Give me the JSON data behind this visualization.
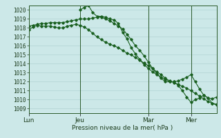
{
  "xlabel": "Pression niveau de la mer( hPa )",
  "background_color": "#cce8e8",
  "grid_color": "#aacece",
  "line_color": "#1a6020",
  "vline_color": "#2a5a2a",
  "ylim": [
    1008.5,
    1020.5
  ],
  "yticks": [
    1009,
    1010,
    1011,
    1012,
    1013,
    1014,
    1015,
    1016,
    1017,
    1018,
    1019,
    1020
  ],
  "xtick_labels": [
    "Lun",
    "Jeu",
    "Mar",
    "Mer"
  ],
  "xtick_positions": [
    0,
    36,
    84,
    114
  ],
  "xlim": [
    0,
    132
  ],
  "series1_x": [
    0,
    3,
    6,
    9,
    12,
    15,
    18,
    21,
    24,
    27,
    30,
    33,
    36,
    39,
    42,
    45,
    48,
    51,
    54,
    57,
    60,
    63,
    66,
    69,
    72,
    75,
    78,
    81,
    84,
    87,
    90,
    93,
    96,
    99,
    102,
    105,
    108,
    111,
    114,
    117,
    120,
    123,
    126,
    129,
    132
  ],
  "series1_y": [
    1017.8,
    1018.1,
    1018.3,
    1018.2,
    1018.2,
    1018.2,
    1018.1,
    1018.0,
    1018.0,
    1018.2,
    1018.3,
    1018.4,
    1018.3,
    1018.1,
    1017.8,
    1017.4,
    1017.0,
    1016.7,
    1016.4,
    1016.2,
    1016.0,
    1015.8,
    1015.5,
    1015.2,
    1015.0,
    1014.7,
    1014.4,
    1014.1,
    1013.8,
    1013.5,
    1013.1,
    1012.8,
    1012.4,
    1012.1,
    1011.9,
    1011.7,
    1011.5,
    1011.3,
    1011.0,
    1010.7,
    1010.4,
    1010.1,
    1009.8,
    1009.6,
    1009.4
  ],
  "series2_x": [
    0,
    3,
    6,
    9,
    12,
    15,
    18,
    21,
    24,
    27,
    30,
    33,
    36,
    39,
    42,
    45,
    48,
    51,
    54,
    57,
    60,
    63,
    66,
    69,
    72,
    75,
    78,
    81,
    84,
    87,
    90,
    93,
    96,
    99,
    102,
    105,
    108,
    111,
    114,
    117,
    120,
    123,
    126,
    129,
    132
  ],
  "series2_y": [
    1018.2,
    1018.3,
    1018.4,
    1018.5,
    1018.5,
    1018.6,
    1018.6,
    1018.6,
    1018.6,
    1018.7,
    1018.8,
    1018.9,
    1019.0,
    1019.0,
    1019.0,
    1019.1,
    1019.2,
    1019.2,
    1019.0,
    1018.8,
    1018.5,
    1018.2,
    1017.9,
    1017.3,
    1016.7,
    1016.0,
    1015.5,
    1014.9,
    1014.2,
    1013.5,
    1012.9,
    1012.4,
    1012.0,
    1012.0,
    1012.0,
    1012.1,
    1012.3,
    1012.5,
    1012.8,
    1012.0,
    1011.2,
    1010.5,
    1010.2,
    1010.1,
    1010.3
  ],
  "series3_x": [
    36,
    39,
    42,
    45,
    48,
    51,
    54,
    57,
    60,
    63,
    66,
    69,
    72,
    75,
    78,
    81,
    84,
    87,
    90,
    93,
    96,
    99,
    102,
    105,
    108,
    111,
    114,
    117,
    120,
    123,
    126,
    129,
    132
  ],
  "series3_y": [
    1020.0,
    1020.3,
    1020.5,
    1019.7,
    1019.3,
    1019.3,
    1019.2,
    1019.0,
    1018.9,
    1018.5,
    1017.5,
    1016.8,
    1015.8,
    1015.1,
    1014.5,
    1013.9,
    1013.5,
    1013.1,
    1012.8,
    1012.5,
    1012.3,
    1012.0,
    1012.0,
    1011.6,
    1011.0,
    1010.3,
    1009.7,
    1010.0,
    1010.2,
    1010.5,
    1010.2,
    1009.6,
    1009.5
  ]
}
